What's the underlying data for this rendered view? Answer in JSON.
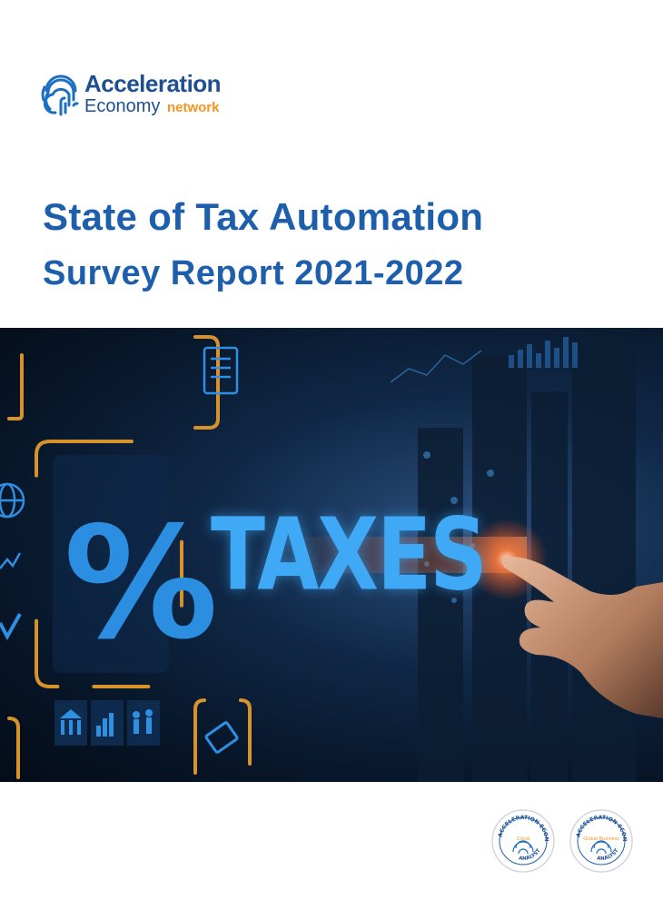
{
  "logo": {
    "line1": "Acceleration",
    "line2": "Economy",
    "accent": "network"
  },
  "title": "State of Tax Automation",
  "subtitle": "Survey Report 2021-2022",
  "hero": {
    "big_text": "TAXES",
    "symbol": "%"
  },
  "badges": [
    {
      "ring_text": "ACCELERATION ECONOMY",
      "center": "Cloud",
      "bottom": "ANALYST"
    },
    {
      "ring_text": "ACCELERATION ECONOMY",
      "center": "Global Business",
      "bottom": "ANALYST"
    }
  ],
  "colors": {
    "brand_blue": "#1d5fad",
    "accent_orange": "#f7941d",
    "hero_glow": "#3fa9f5"
  }
}
